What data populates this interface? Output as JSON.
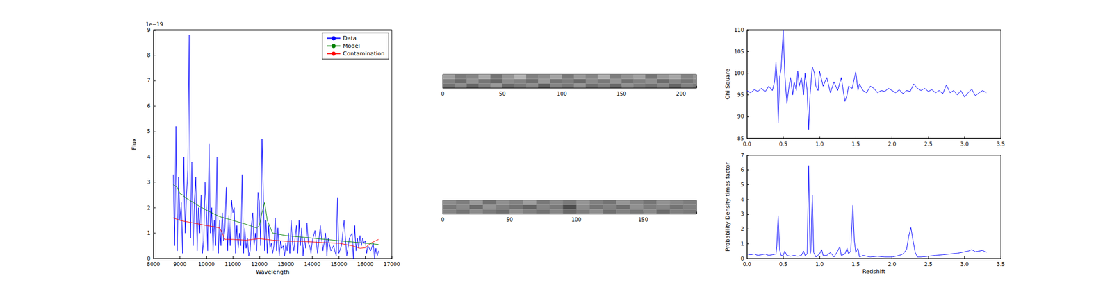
{
  "chart_data": [
    {
      "type": "line",
      "xlabel": "Wavelength",
      "ylabel": "Flux",
      "y_offset_label": "1e−19",
      "xlim": [
        8000,
        17000
      ],
      "xticks": [
        8000,
        9000,
        10000,
        11000,
        12000,
        13000,
        14000,
        15000,
        16000,
        17000
      ],
      "ylim": [
        0,
        9
      ],
      "yticks": [
        0,
        1,
        2,
        3,
        4,
        5,
        6,
        7,
        8,
        9
      ],
      "grid": false,
      "legend": "upper right",
      "series": [
        {
          "name": "Data",
          "color": "#0000ff",
          "x": [
            8750,
            8800,
            8850,
            8900,
            8950,
            9000,
            9050,
            9100,
            9150,
            9200,
            9250,
            9300,
            9350,
            9400,
            9450,
            9500,
            9550,
            9600,
            9650,
            9700,
            9750,
            9800,
            9850,
            9900,
            9950,
            10000,
            10050,
            10100,
            10150,
            10200,
            10250,
            10300,
            10350,
            10400,
            10450,
            10500,
            10550,
            10600,
            10650,
            10700,
            10750,
            10800,
            10850,
            10900,
            10950,
            11000,
            11050,
            11100,
            11150,
            11200,
            11250,
            11300,
            11350,
            11400,
            11450,
            11500,
            11550,
            11600,
            11650,
            11700,
            11750,
            11800,
            11850,
            11900,
            11950,
            12000,
            12050,
            12100,
            12150,
            12200,
            12250,
            12300,
            12350,
            12400,
            12450,
            12500,
            12550,
            12600,
            12650,
            12700,
            12750,
            12800,
            12850,
            12900,
            12950,
            13000,
            13050,
            13100,
            13150,
            13200,
            13250,
            13300,
            13350,
            13400,
            13450,
            13500,
            13550,
            13600,
            13650,
            13700,
            13750,
            13800,
            13850,
            13900,
            13950,
            14000,
            14100,
            14200,
            14300,
            14400,
            14500,
            14550,
            14600,
            14700,
            14800,
            14900,
            14950,
            15000,
            15100,
            15200,
            15300,
            15400,
            15500,
            15550,
            15600,
            15650,
            15700,
            15750,
            15800,
            15850,
            15900,
            15950,
            16000,
            16050,
            16100,
            16200,
            16300,
            16350,
            16400,
            16450,
            16500
          ],
          "values": [
            3.3,
            0.5,
            5.2,
            0.3,
            3.2,
            1.5,
            2.2,
            0.2,
            4.0,
            1.0,
            2.5,
            3.5,
            8.8,
            0.8,
            3.8,
            0.5,
            2.3,
            3.2,
            0.3,
            2.0,
            1.0,
            2.5,
            0.2,
            0.7,
            3.0,
            2.0,
            0.3,
            4.5,
            1.0,
            2.0,
            0.3,
            1.5,
            0.5,
            4.0,
            0.2,
            1.5,
            0.5,
            1.8,
            0.7,
            1.2,
            2.8,
            0.3,
            1.7,
            0.5,
            2.3,
            1.8,
            2.0,
            0.2,
            1.3,
            0.4,
            1.0,
            0.5,
            3.3,
            0.2,
            1.2,
            0.4,
            0.8,
            0.1,
            0.3,
            1.3,
            1.8,
            0.5,
            1.0,
            0.3,
            2.6,
            2.2,
            0.5,
            4.7,
            2.5,
            0.3,
            1.5,
            0.2,
            1.3,
            0.4,
            0.6,
            0.2,
            0.5,
            1.6,
            0.3,
            1.2,
            0.1,
            0.7,
            0.4,
            0.5,
            0.1,
            0.6,
            0.3,
            1.0,
            0.2,
            1.5,
            0.6,
            0.3,
            0.8,
            1.3,
            0.2,
            1.5,
            0.5,
            1.2,
            0.1,
            0.8,
            0.4,
            1.4,
            0.6,
            0.5,
            0.2,
            0.7,
            1.1,
            0.2,
            1.3,
            0.3,
            1.0,
            0.1,
            0.8,
            0.3,
            0.5,
            0.1,
            2.4,
            0.2,
            0.5,
            1.5,
            0.1,
            0.8,
            1.0,
            0.0,
            1.3,
            0.3,
            0.8,
            0.4,
            0.9,
            0.5,
            0.8,
            0.6,
            0.7,
            0.2,
            0.5,
            0.3,
            0.6,
            0.0,
            0.4,
            0.1,
            0.3
          ]
        },
        {
          "name": "Model",
          "color": "#008000",
          "x": [
            8750,
            8900,
            9000,
            9100,
            9200,
            9500,
            10000,
            10500,
            11000,
            11500,
            11900,
            12000,
            12100,
            12200,
            12300,
            12500,
            13000,
            13500,
            14000,
            14500,
            15000,
            15500,
            16000,
            16500
          ],
          "values": [
            2.9,
            2.8,
            2.55,
            2.5,
            2.4,
            2.2,
            1.9,
            1.65,
            1.5,
            1.35,
            1.2,
            1.3,
            1.8,
            2.2,
            1.5,
            1.0,
            0.9,
            0.85,
            0.8,
            0.75,
            0.7,
            0.65,
            0.6,
            0.55
          ]
        },
        {
          "name": "Contamination",
          "color": "#ff0000",
          "x": [
            8750,
            9000,
            9500,
            10000,
            10300,
            10500,
            10600,
            10700,
            11000,
            11500,
            12000,
            12500,
            13000,
            13500,
            14000,
            14500,
            15000,
            15500,
            15800,
            16000,
            16200,
            16500
          ],
          "values": [
            1.6,
            1.5,
            1.4,
            1.3,
            1.25,
            1.2,
            1.0,
            0.75,
            0.75,
            0.72,
            0.78,
            0.72,
            0.68,
            0.68,
            0.65,
            0.62,
            0.6,
            0.5,
            0.4,
            0.42,
            0.6,
            0.75
          ]
        }
      ]
    },
    {
      "type": "image",
      "tick_labels": "x",
      "grid": false,
      "xlim": [
        0,
        213
      ],
      "xticks": [
        0,
        50,
        100,
        150,
        200
      ],
      "ylim": [
        0,
        3
      ],
      "x_edges": [
        0,
        10,
        20,
        30,
        40,
        50,
        60,
        70,
        80,
        90,
        100,
        110,
        120,
        130,
        140,
        150,
        160,
        170,
        180,
        190,
        200,
        210,
        213
      ],
      "y_edges": [
        0,
        1,
        2,
        3
      ],
      "cells": [
        [
          0.45,
          0.55,
          0.4,
          0.5,
          0.6,
          0.42,
          0.48,
          0.55,
          0.38,
          0.52,
          0.47,
          0.58,
          0.44,
          0.5,
          0.41,
          0.56,
          0.49,
          0.45,
          0.53,
          0.4,
          0.51,
          0.47
        ],
        [
          0.5,
          0.42,
          0.57,
          0.46,
          0.4,
          0.55,
          0.51,
          0.43,
          0.6,
          0.45,
          0.49,
          0.41,
          0.54,
          0.47,
          0.58,
          0.44,
          0.5,
          0.56,
          0.42,
          0.52,
          0.46,
          0.53
        ],
        [
          0.62,
          0.48,
          0.52,
          0.66,
          0.45,
          0.58,
          0.7,
          0.5,
          0.55,
          0.64,
          0.47,
          0.6,
          0.52,
          0.68,
          0.49,
          0.57,
          0.63,
          0.46,
          0.59,
          0.65,
          0.51,
          0.58
        ]
      ]
    },
    {
      "type": "image",
      "tick_labels": "x",
      "grid": false,
      "xlim": [
        0,
        190
      ],
      "xticks": [
        0,
        50,
        100,
        150
      ],
      "ylim": [
        0,
        3
      ],
      "x_edges": [
        0,
        10,
        20,
        30,
        40,
        50,
        60,
        70,
        80,
        90,
        100,
        110,
        120,
        130,
        140,
        150,
        160,
        170,
        180,
        190
      ],
      "y_edges": [
        0,
        1,
        2,
        3
      ],
      "cells": [
        [
          0.52,
          0.46,
          0.55,
          0.48,
          0.43,
          0.57,
          0.5,
          0.45,
          0.53,
          0.41,
          0.49,
          0.56,
          0.44,
          0.51,
          0.47,
          0.54,
          0.42,
          0.5,
          0.48
        ],
        [
          0.47,
          0.54,
          0.42,
          0.58,
          0.5,
          0.45,
          0.39,
          0.52,
          0.48,
          0.3,
          0.55,
          0.46,
          0.51,
          0.43,
          0.57,
          0.49,
          0.53,
          0.45,
          0.5
        ],
        [
          0.55,
          0.49,
          0.6,
          0.44,
          0.56,
          0.51,
          0.62,
          0.47,
          0.54,
          0.48,
          0.58,
          0.5,
          0.45,
          0.59,
          0.52,
          0.46,
          0.57,
          0.53,
          0.49
        ]
      ]
    },
    {
      "type": "line",
      "ylabel": "Chi Square",
      "grid": false,
      "xlim": [
        0,
        3.5
      ],
      "xticks": [
        {
          "value": 0,
          "label": "0.0"
        },
        0.5,
        {
          "value": 1,
          "label": "1.0"
        },
        1.5,
        {
          "value": 2,
          "label": "2.0"
        },
        2.5,
        {
          "value": 3,
          "label": "3.0"
        },
        3.5
      ],
      "ylim": [
        85,
        110
      ],
      "yticks": [
        85,
        90,
        95,
        100,
        105,
        110
      ],
      "series": [
        {
          "color": "#0000ff",
          "x": [
            0,
            0.05,
            0.1,
            0.15,
            0.2,
            0.25,
            0.3,
            0.35,
            0.38,
            0.4,
            0.42,
            0.43,
            0.45,
            0.47,
            0.5,
            0.52,
            0.55,
            0.58,
            0.6,
            0.63,
            0.65,
            0.68,
            0.7,
            0.72,
            0.75,
            0.78,
            0.8,
            0.83,
            0.85,
            0.87,
            0.9,
            0.93,
            0.95,
            0.98,
            1.0,
            1.05,
            1.1,
            1.15,
            1.2,
            1.25,
            1.3,
            1.35,
            1.38,
            1.4,
            1.45,
            1.5,
            1.53,
            1.55,
            1.6,
            1.65,
            1.7,
            1.75,
            1.8,
            1.85,
            1.9,
            1.95,
            2.0,
            2.05,
            2.1,
            2.15,
            2.2,
            2.25,
            2.3,
            2.35,
            2.4,
            2.45,
            2.5,
            2.55,
            2.6,
            2.65,
            2.7,
            2.75,
            2.8,
            2.85,
            2.9,
            2.95,
            3.0,
            3.05,
            3.1,
            3.15,
            3.2,
            3.25,
            3.3
          ],
          "values": [
            96,
            95.5,
            96.2,
            95.8,
            96.5,
            95.7,
            97,
            96,
            98,
            102.5,
            97,
            88.5,
            99,
            101,
            110,
            100,
            93,
            97,
            99,
            95,
            98,
            96,
            100.5,
            97,
            99,
            95,
            100,
            96,
            87,
            95,
            101.5,
            100,
            97,
            96,
            100.5,
            97,
            99,
            95.5,
            98,
            96,
            99,
            93.5,
            95,
            97,
            96.5,
            100.3,
            96,
            97.5,
            96,
            95.5,
            97,
            96.5,
            95.5,
            96,
            95.8,
            96.5,
            96,
            95.5,
            96.2,
            95.3,
            96,
            95.8,
            97.5,
            96.5,
            96,
            96.5,
            95.8,
            96.2,
            95.5,
            96,
            95.3,
            97.3,
            95.5,
            96,
            95,
            96,
            94.5,
            95.5,
            96.3,
            94.8,
            95.5,
            96,
            95.5
          ]
        }
      ]
    },
    {
      "type": "line",
      "xlabel": "Redshift",
      "ylabel": "Probability Density times factor",
      "grid": false,
      "xlim": [
        0,
        3.5
      ],
      "xticks": [
        {
          "value": 0,
          "label": "0.0"
        },
        0.5,
        {
          "value": 1,
          "label": "1.0"
        },
        1.5,
        {
          "value": 2,
          "label": "2.0"
        },
        2.5,
        {
          "value": 3,
          "label": "3.0"
        },
        3.5
      ],
      "ylim": [
        0,
        7
      ],
      "yticks": [
        0,
        1,
        2,
        3,
        4,
        5,
        6,
        7
      ],
      "series": [
        {
          "color": "#0000ff",
          "x": [
            0,
            0.05,
            0.1,
            0.15,
            0.2,
            0.25,
            0.3,
            0.35,
            0.4,
            0.41,
            0.43,
            0.45,
            0.47,
            0.5,
            0.52,
            0.55,
            0.6,
            0.65,
            0.7,
            0.75,
            0.78,
            0.8,
            0.83,
            0.85,
            0.87,
            0.88,
            0.9,
            0.92,
            0.95,
            1.0,
            1.03,
            1.05,
            1.1,
            1.15,
            1.2,
            1.25,
            1.28,
            1.3,
            1.35,
            1.38,
            1.4,
            1.43,
            1.46,
            1.48,
            1.5,
            1.53,
            1.55,
            1.6,
            1.7,
            1.8,
            1.9,
            2.0,
            2.1,
            2.15,
            2.2,
            2.23,
            2.26,
            2.29,
            2.32,
            2.35,
            2.4,
            2.5,
            2.6,
            2.7,
            2.8,
            2.9,
            3.0,
            3.05,
            3.1,
            3.15,
            3.2,
            3.25,
            3.3
          ],
          "values": [
            0.3,
            0.25,
            0.3,
            0.2,
            0.25,
            0.3,
            0.2,
            0.25,
            0.3,
            0.8,
            2.9,
            0.6,
            0.2,
            0.2,
            0.5,
            0.2,
            0.15,
            0.2,
            0.15,
            0.2,
            0.5,
            0.2,
            0.3,
            6.3,
            0.3,
            0.5,
            4.3,
            0.4,
            0.1,
            0.3,
            0.6,
            0.2,
            0.2,
            0.4,
            0.1,
            0.5,
            0.8,
            0.2,
            0.3,
            0.7,
            0.3,
            0.5,
            3.6,
            1.2,
            0.4,
            0.7,
            0.1,
            0.2,
            0.1,
            0.15,
            0.1,
            0.1,
            0.2,
            0.3,
            0.6,
            1.5,
            2.1,
            1.2,
            0.4,
            0.1,
            0.1,
            0.15,
            0.2,
            0.25,
            0.3,
            0.35,
            0.45,
            0.5,
            0.6,
            0.45,
            0.5,
            0.55,
            0.4
          ]
        }
      ]
    }
  ]
}
